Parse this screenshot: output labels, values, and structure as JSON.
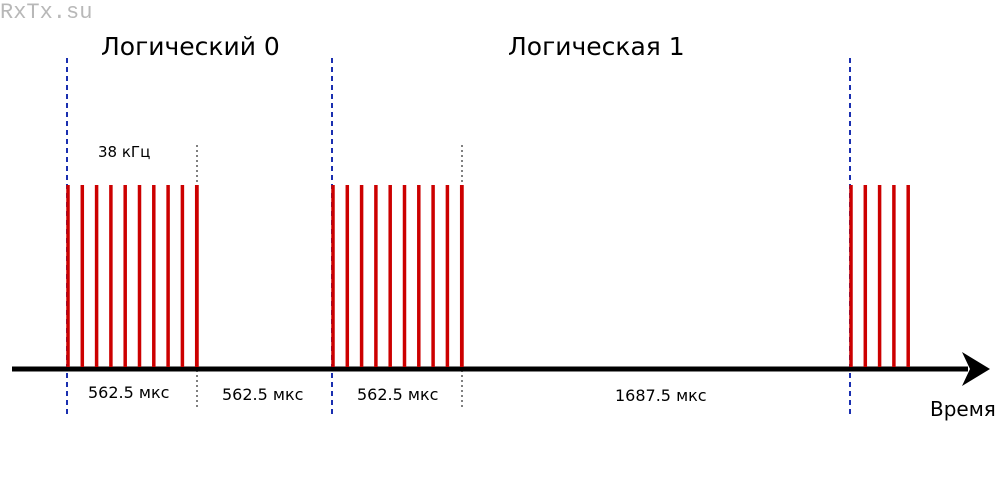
{
  "watermark": "RxTx.su",
  "titles": {
    "logic0": "Логический 0",
    "logic1": "Логическая 1"
  },
  "carrier_label": "38 кГц",
  "durations": {
    "d1": "562.5 мкс",
    "d2": "562.5 мкс",
    "d3": "562.5 мкс",
    "d4": "1687.5 мкс"
  },
  "axis_label": "Время",
  "colors": {
    "pulse": "#cc0000",
    "boundary": "#1a2fb0",
    "axis": "#000000",
    "watermark": "#b8b8b8"
  },
  "pulse_bursts": [
    {
      "name": "burst-logic0",
      "lines": 10
    },
    {
      "name": "burst-logic1",
      "lines": 10
    },
    {
      "name": "burst-next",
      "lines": 5
    }
  ]
}
